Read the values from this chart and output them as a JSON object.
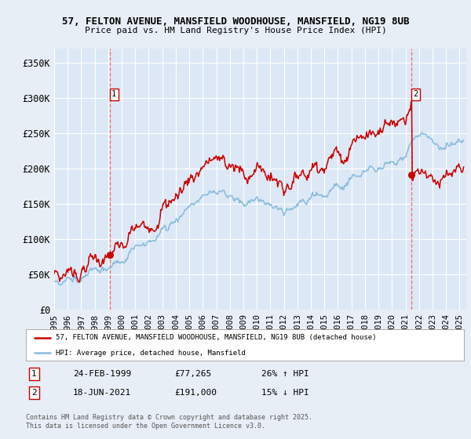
{
  "title_line1": "57, FELTON AVENUE, MANSFIELD WOODHOUSE, MANSFIELD, NG19 8UB",
  "title_line2": "Price paid vs. HM Land Registry's House Price Index (HPI)",
  "bg_color": "#e8eef5",
  "plot_bg_color": "#dce8f5",
  "grid_color": "#ffffff",
  "red_line_color": "#cc0000",
  "blue_line_color": "#88bbdd",
  "ylim": [
    0,
    370000
  ],
  "yticks": [
    0,
    50000,
    100000,
    150000,
    200000,
    250000,
    300000,
    350000
  ],
  "ytick_labels": [
    "£0",
    "£50K",
    "£100K",
    "£150K",
    "£200K",
    "£250K",
    "£300K",
    "£350K"
  ],
  "xmin_year": 1995.0,
  "xmax_year": 2025.5,
  "xtick_years": [
    1995,
    1996,
    1997,
    1998,
    1999,
    2000,
    2001,
    2002,
    2003,
    2004,
    2005,
    2006,
    2007,
    2008,
    2009,
    2010,
    2011,
    2012,
    2013,
    2014,
    2015,
    2016,
    2017,
    2018,
    2019,
    2020,
    2021,
    2022,
    2023,
    2024,
    2025
  ],
  "sale1_x": 1999.15,
  "sale1_y": 77265,
  "sale2_x": 2021.46,
  "sale2_y": 191000,
  "vline_color": "#ff6666",
  "legend_label_red": "57, FELTON AVENUE, MANSFIELD WOODHOUSE, MANSFIELD, NG19 8UB (detached house)",
  "legend_label_blue": "HPI: Average price, detached house, Mansfield",
  "info1_num": "1",
  "info1_date": "24-FEB-1999",
  "info1_price": "£77,265",
  "info1_change": "26% ↑ HPI",
  "info2_num": "2",
  "info2_date": "18-JUN-2021",
  "info2_price": "£191,000",
  "info2_change": "15% ↓ HPI",
  "footer": "Contains HM Land Registry data © Crown copyright and database right 2025.\nThis data is licensed under the Open Government Licence v3.0."
}
